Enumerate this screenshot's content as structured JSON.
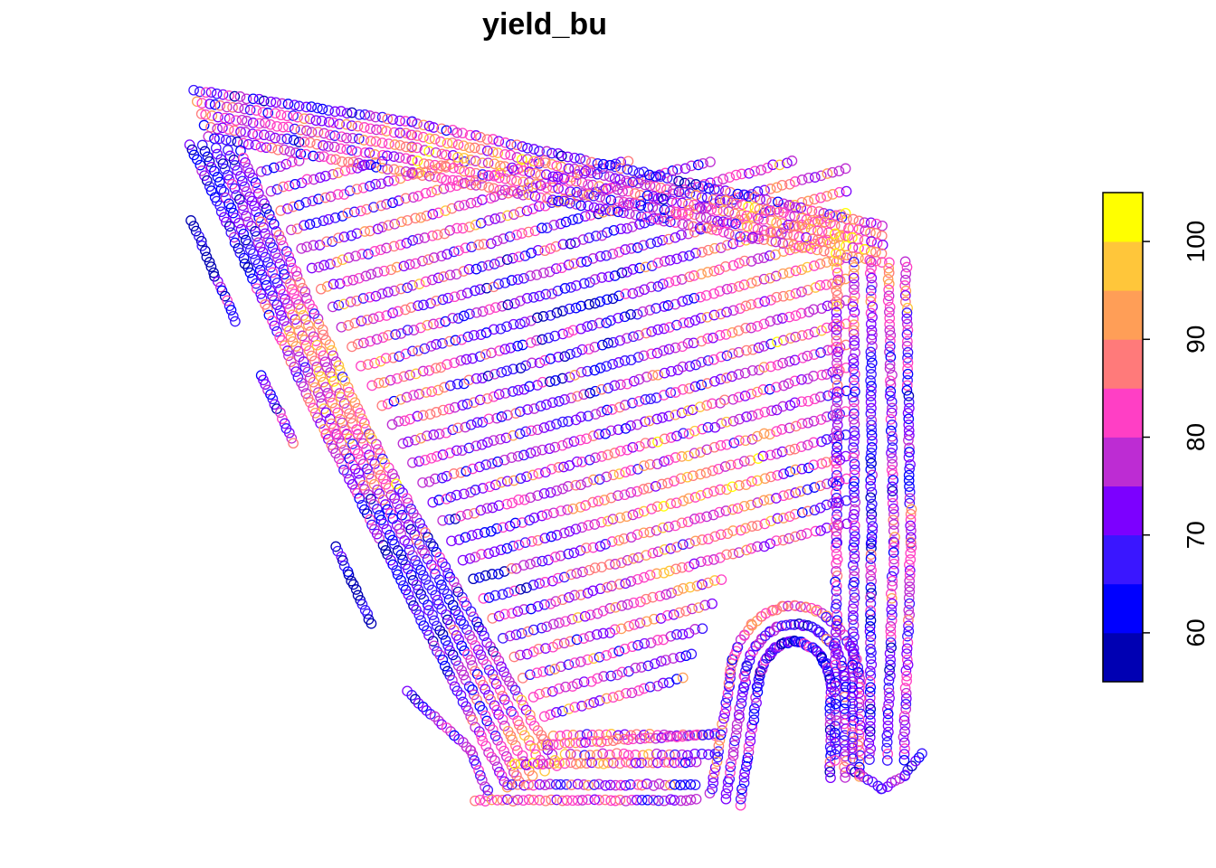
{
  "chart_data": {
    "type": "scatter",
    "title": "yield_bu",
    "variable": "yield_bu",
    "marker": "open-circle",
    "geometry": "yield monitor points following combine harvest passes in a field",
    "colorbar": {
      "placement": "right",
      "range": [
        55,
        105
      ],
      "breaks": [
        55,
        60,
        65,
        70,
        75,
        80,
        85,
        90,
        95,
        100,
        105
      ],
      "colors": [
        "#0000B3",
        "#0000FF",
        "#3A16FF",
        "#7C00FF",
        "#BD2CD3",
        "#FF3FC5",
        "#FF7A7A",
        "#FF9E57",
        "#FFC63A",
        "#FFFF00"
      ],
      "tick_values": [
        60,
        70,
        80,
        90,
        100
      ],
      "tick_labels": [
        "60",
        "70",
        "80",
        "90",
        "100"
      ]
    },
    "value_summary": {
      "min": 55,
      "max": 105,
      "dominant_range": [
        70,
        90
      ]
    }
  }
}
